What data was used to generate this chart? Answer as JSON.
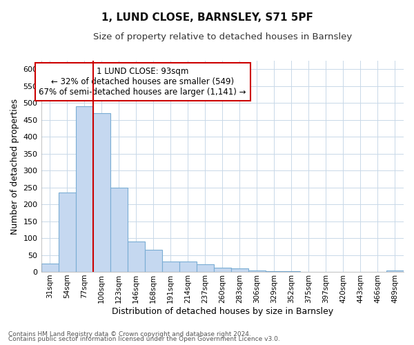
{
  "title": "1, LUND CLOSE, BARNSLEY, S71 5PF",
  "subtitle": "Size of property relative to detached houses in Barnsley",
  "xlabel": "Distribution of detached houses by size in Barnsley",
  "ylabel": "Number of detached properties",
  "annotation_line1": "1 LUND CLOSE: 93sqm",
  "annotation_line2": "← 32% of detached houses are smaller (549)",
  "annotation_line3": "67% of semi-detached houses are larger (1,141) →",
  "bar_color": "#c5d8f0",
  "bar_edge_color": "#7aadd4",
  "redline_color": "#cc0000",
  "annotation_box_edgecolor": "#cc0000",
  "categories": [
    "31sqm",
    "54sqm",
    "77sqm",
    "100sqm",
    "123sqm",
    "146sqm",
    "168sqm",
    "191sqm",
    "214sqm",
    "237sqm",
    "260sqm",
    "283sqm",
    "306sqm",
    "329sqm",
    "352sqm",
    "375sqm",
    "397sqm",
    "420sqm",
    "443sqm",
    "466sqm",
    "489sqm"
  ],
  "values": [
    25,
    235,
    490,
    470,
    250,
    90,
    65,
    30,
    30,
    23,
    12,
    10,
    5,
    2,
    2,
    1,
    1,
    0,
    0,
    0,
    5
  ],
  "ylim": [
    0,
    625
  ],
  "yticks": [
    0,
    50,
    100,
    150,
    200,
    250,
    300,
    350,
    400,
    450,
    500,
    550,
    600
  ],
  "redline_x": 3.0,
  "background_color": "#ffffff",
  "grid_color": "#c8d8e8",
  "footnote1": "Contains HM Land Registry data © Crown copyright and database right 2024.",
  "footnote2": "Contains public sector information licensed under the Open Government Licence v3.0."
}
